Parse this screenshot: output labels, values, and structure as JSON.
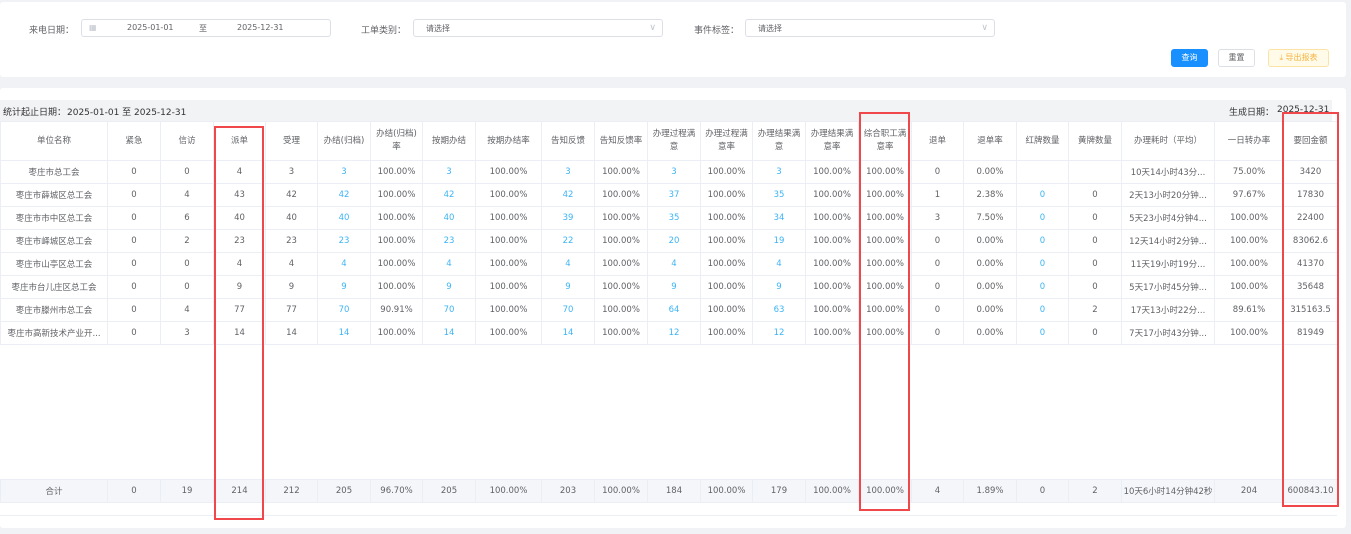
{
  "filters": {
    "date_label": "来电日期：",
    "date_start": "2025-01-01",
    "date_sep": "至",
    "date_end": "2025-12-31",
    "type_label": "工单类别：",
    "type_placeholder": "请选择",
    "tag_label": "事件标签：",
    "tag_placeholder": "请选择"
  },
  "buttons": {
    "query": "查询",
    "reset": "重置",
    "export": "导出报表",
    "export_icon": "download-icon"
  },
  "report": {
    "range_label": "统计起止日期：",
    "range_value": "2025-01-01 至 2025-12-31",
    "gen_label": "生成日期：",
    "gen_value": "2025-12-31"
  },
  "colors": {
    "primary": "#1890ff",
    "link": "#3cb4f5",
    "highlight": "#f0474a",
    "export": "#f5b342"
  },
  "table": {
    "columns": [
      "单位名称",
      "紧急",
      "信访",
      "派单",
      "受理",
      "办结(归档)",
      "办结(归档)率",
      "按期办结",
      "按期办结率",
      "告知反馈",
      "告知反馈率",
      "办理过程满意",
      "办理过程满意率",
      "办理结果满意",
      "办理结果满意率",
      "综合职工满意率",
      "退单",
      "退单率",
      "红牌数量",
      "黄牌数量",
      "办理耗时（平均）",
      "一日转办率",
      "要回金额"
    ],
    "rows": [
      [
        "枣庄市总工会",
        "0",
        "0",
        "4",
        "3",
        "3",
        "100.00%",
        "3",
        "100.00%",
        "3",
        "100.00%",
        "3",
        "100.00%",
        "3",
        "100.00%",
        "100.00%",
        "0",
        "0.00%",
        "",
        "",
        "10天14小时43分...",
        "75.00%",
        "3420"
      ],
      [
        "枣庄市薛城区总工会",
        "0",
        "4",
        "43",
        "42",
        "42",
        "100.00%",
        "42",
        "100.00%",
        "42",
        "100.00%",
        "37",
        "100.00%",
        "35",
        "100.00%",
        "100.00%",
        "1",
        "2.38%",
        "0",
        "0",
        "2天13小时20分钟...",
        "97.67%",
        "17830"
      ],
      [
        "枣庄市市中区总工会",
        "0",
        "6",
        "40",
        "40",
        "40",
        "100.00%",
        "40",
        "100.00%",
        "39",
        "100.00%",
        "35",
        "100.00%",
        "34",
        "100.00%",
        "100.00%",
        "3",
        "7.50%",
        "0",
        "0",
        "5天23小时4分钟4...",
        "100.00%",
        "22400"
      ],
      [
        "枣庄市峄城区总工会",
        "0",
        "2",
        "23",
        "23",
        "23",
        "100.00%",
        "23",
        "100.00%",
        "22",
        "100.00%",
        "20",
        "100.00%",
        "19",
        "100.00%",
        "100.00%",
        "0",
        "0.00%",
        "0",
        "0",
        "12天14小时2分钟...",
        "100.00%",
        "83062.6"
      ],
      [
        "枣庄市山亭区总工会",
        "0",
        "0",
        "4",
        "4",
        "4",
        "100.00%",
        "4",
        "100.00%",
        "4",
        "100.00%",
        "4",
        "100.00%",
        "4",
        "100.00%",
        "100.00%",
        "0",
        "0.00%",
        "0",
        "0",
        "11天19小时19分...",
        "100.00%",
        "41370"
      ],
      [
        "枣庄市台儿庄区总工会",
        "0",
        "0",
        "9",
        "9",
        "9",
        "100.00%",
        "9",
        "100.00%",
        "9",
        "100.00%",
        "9",
        "100.00%",
        "9",
        "100.00%",
        "100.00%",
        "0",
        "0.00%",
        "0",
        "0",
        "5天17小时45分钟...",
        "100.00%",
        "35648"
      ],
      [
        "枣庄市滕州市总工会",
        "0",
        "4",
        "77",
        "77",
        "70",
        "90.91%",
        "70",
        "100.00%",
        "70",
        "100.00%",
        "64",
        "100.00%",
        "63",
        "100.00%",
        "100.00%",
        "0",
        "0.00%",
        "0",
        "2",
        "17天13小时22分...",
        "89.61%",
        "315163.5"
      ],
      [
        "枣庄市高新技术产业开...",
        "0",
        "3",
        "14",
        "14",
        "14",
        "100.00%",
        "14",
        "100.00%",
        "14",
        "100.00%",
        "12",
        "100.00%",
        "12",
        "100.00%",
        "100.00%",
        "0",
        "0.00%",
        "0",
        "0",
        "7天17小时43分钟...",
        "100.00%",
        "81949"
      ]
    ],
    "total": [
      "合计",
      "0",
      "19",
      "214",
      "212",
      "205",
      "96.70%",
      "205",
      "100.00%",
      "203",
      "100.00%",
      "184",
      "100.00%",
      "179",
      "100.00%",
      "100.00%",
      "4",
      "1.89%",
      "0",
      "2",
      "10天6小时14分钟42秒",
      "204",
      "600843.10"
    ]
  }
}
